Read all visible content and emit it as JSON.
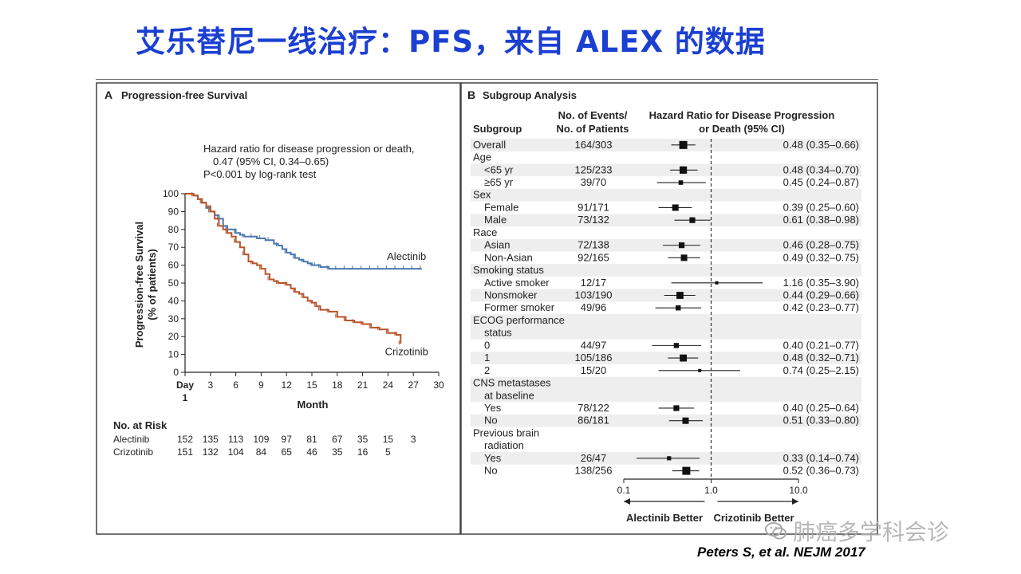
{
  "slide": {
    "title": "艾乐替尼一线治疗：PFS，来自 ALEX 的数据",
    "citation": "Peters S, et al. NEJM 2017",
    "watermark": "肺癌多学科会诊"
  },
  "chart_data": [
    {
      "type": "line",
      "panel_letter": "A",
      "title": "Progression-free Survival",
      "annotation": [
        "Hazard ratio for disease progression or death,",
        "0.47 (95% CI, 0.34–0.65)",
        "P<0.001 by log-rank test"
      ],
      "ylabel": [
        "Progression-free Survival",
        "(% of patients)"
      ],
      "xlabel": "Month",
      "xlim": [
        0,
        30
      ],
      "ylim": [
        0,
        100
      ],
      "xticks": [
        {
          "v": 0,
          "label": "Day"
        },
        {
          "v": 3,
          "label": "3"
        },
        {
          "v": 6,
          "label": "6"
        },
        {
          "v": 9,
          "label": "9"
        },
        {
          "v": 12,
          "label": "12"
        },
        {
          "v": 15,
          "label": "15"
        },
        {
          "v": 18,
          "label": "18"
        },
        {
          "v": 21,
          "label": "21"
        },
        {
          "v": 24,
          "label": "24"
        },
        {
          "v": 27,
          "label": "27"
        },
        {
          "v": 30,
          "label": "30"
        }
      ],
      "xtick_sub": "1",
      "yticks": [
        0,
        10,
        20,
        30,
        40,
        50,
        60,
        70,
        80,
        90,
        100
      ],
      "series": [
        {
          "name": "Alectinib",
          "color": "#4a78b0",
          "x": [
            0,
            0.5,
            1,
            1.5,
            2,
            2.5,
            3,
            3.5,
            4,
            4.5,
            5,
            5.5,
            6,
            6.5,
            7,
            7.5,
            8,
            8.5,
            9,
            9.5,
            10,
            10.5,
            11,
            11.5,
            12,
            12.5,
            13,
            13.5,
            14,
            14.5,
            15,
            15.5,
            16,
            17,
            18,
            19,
            20,
            21,
            22,
            23,
            24,
            25,
            26,
            27,
            28
          ],
          "y": [
            100,
            100,
            99,
            97,
            95,
            92,
            90,
            88,
            86,
            82,
            80,
            80,
            78,
            77,
            76,
            76,
            76,
            75,
            75,
            74,
            74,
            72,
            71,
            69,
            67,
            66,
            64,
            63,
            62,
            61,
            60,
            60,
            59,
            58,
            58,
            58,
            58,
            58,
            58,
            58,
            58,
            58,
            58,
            58,
            58
          ],
          "end_label_x": 26.2,
          "end_label_y": 63
        },
        {
          "name": "Crizotinib",
          "color": "#b8542a",
          "x": [
            0,
            0.5,
            1,
            1.5,
            2,
            2.5,
            3,
            3.5,
            4,
            4.5,
            5,
            5.5,
            6,
            6.5,
            7,
            7.5,
            8,
            8.5,
            9,
            9.5,
            10,
            10.5,
            11,
            11.5,
            12,
            12.5,
            13,
            13.5,
            14,
            14.5,
            15,
            15.5,
            16,
            17,
            18,
            19,
            20,
            21,
            22,
            23,
            24,
            25,
            25.5
          ],
          "y": [
            100,
            100,
            99,
            97,
            95,
            93,
            90,
            86,
            82,
            80,
            78,
            76,
            73,
            70,
            66,
            62,
            61,
            60,
            58,
            55,
            52,
            51,
            50,
            50,
            49,
            47,
            45,
            44,
            42,
            40,
            39,
            37,
            35,
            34,
            31,
            29,
            28,
            27,
            25,
            24,
            22,
            21,
            16
          ],
          "end_label_x": 26.2,
          "end_label_y": 9.5
        }
      ],
      "at_risk": {
        "header": "No. at Risk",
        "rows": [
          {
            "name": "Alectinib",
            "values": [
              "152",
              "135",
              "113",
              "109",
              "97",
              "81",
              "67",
              "35",
              "15",
              "3"
            ]
          },
          {
            "name": "Crizotinib",
            "values": [
              "151",
              "132",
              "104",
              "84",
              "65",
              "46",
              "35",
              "16",
              "5"
            ]
          }
        ]
      }
    },
    {
      "type": "forest",
      "panel_letter": "B",
      "title": "Subgroup Analysis",
      "col_headers": {
        "subgroup": "Subgroup",
        "events": [
          "No. of Events/",
          "No. of Patients"
        ],
        "hr": [
          "Hazard Ratio for Disease Progression",
          "or Death (95% CI)"
        ]
      },
      "x_scale": "log",
      "xlim": [
        0.1,
        10
      ],
      "xticks": [
        {
          "v": 0.1,
          "label": "0.1"
        },
        {
          "v": 1,
          "label": "1.0"
        },
        {
          "v": 10,
          "label": "10.0"
        }
      ],
      "left_favor": "Alectinib Better",
      "right_favor": "Crizotinib Better",
      "rows": [
        {
          "label": "Overall",
          "indent": 0,
          "events": "164/303",
          "hr": 0.48,
          "lo": 0.35,
          "hi": 0.66,
          "text": "0.48 (0.35–0.66)",
          "w": 1.0,
          "shade": true
        },
        {
          "label": "Age",
          "indent": 0,
          "header": true
        },
        {
          "label": "<65 yr",
          "indent": 1,
          "events": "125/233",
          "hr": 0.48,
          "lo": 0.34,
          "hi": 0.7,
          "text": "0.48 (0.34–0.70)",
          "w": 0.9,
          "shade": true
        },
        {
          "label": "≥65 yr",
          "indent": 1,
          "events": "39/70",
          "hr": 0.45,
          "lo": 0.24,
          "hi": 0.87,
          "text": "0.45 (0.24–0.87)",
          "w": 0.45
        },
        {
          "label": "Sex",
          "indent": 0,
          "header": true,
          "shade": true
        },
        {
          "label": "Female",
          "indent": 1,
          "events": "91/171",
          "hr": 0.39,
          "lo": 0.25,
          "hi": 0.6,
          "text": "0.39 (0.25–0.60)",
          "w": 0.75
        },
        {
          "label": "Male",
          "indent": 1,
          "events": "73/132",
          "hr": 0.61,
          "lo": 0.38,
          "hi": 0.98,
          "text": "0.61 (0.38–0.98)",
          "w": 0.65,
          "shade": true
        },
        {
          "label": "Race",
          "indent": 0,
          "header": true
        },
        {
          "label": "Asian",
          "indent": 1,
          "events": "72/138",
          "hr": 0.46,
          "lo": 0.28,
          "hi": 0.75,
          "text": "0.46 (0.28–0.75)",
          "w": 0.65,
          "shade": true
        },
        {
          "label": "Non-Asian",
          "indent": 1,
          "events": "92/165",
          "hr": 0.49,
          "lo": 0.32,
          "hi": 0.75,
          "text": "0.49 (0.32–0.75)",
          "w": 0.75
        },
        {
          "label": "Smoking status",
          "indent": 0,
          "header": true,
          "shade": true
        },
        {
          "label": "Active smoker",
          "indent": 1,
          "events": "12/17",
          "hr": 1.16,
          "lo": 0.35,
          "hi": 3.9,
          "text": "1.16 (0.35–3.90)",
          "w": 0.25
        },
        {
          "label": "Nonsmoker",
          "indent": 1,
          "events": "103/190",
          "hr": 0.44,
          "lo": 0.29,
          "hi": 0.66,
          "text": "0.44 (0.29–0.66)",
          "w": 0.85,
          "shade": true
        },
        {
          "label": "Former smoker",
          "indent": 1,
          "events": "49/96",
          "hr": 0.42,
          "lo": 0.23,
          "hi": 0.77,
          "text": "0.42 (0.23–0.77)",
          "w": 0.55
        },
        {
          "label": "ECOG performance",
          "label2": "status",
          "indent": 0,
          "header": true,
          "shade": true
        },
        {
          "label": "0",
          "indent": 1,
          "events": "44/97",
          "hr": 0.4,
          "lo": 0.21,
          "hi": 0.77,
          "text": "0.40 (0.21–0.77)",
          "w": 0.55
        },
        {
          "label": "1",
          "indent": 1,
          "events": "105/186",
          "hr": 0.48,
          "lo": 0.32,
          "hi": 0.71,
          "text": "0.48 (0.32–0.71)",
          "w": 0.85,
          "shade": true
        },
        {
          "label": "2",
          "indent": 1,
          "events": "15/20",
          "hr": 0.74,
          "lo": 0.25,
          "hi": 2.15,
          "text": "0.74 (0.25–2.15)",
          "w": 0.25
        },
        {
          "label": "CNS metastases",
          "label2": "at baseline",
          "indent": 0,
          "header": true,
          "shade": true
        },
        {
          "label": "Yes",
          "indent": 1,
          "events": "78/122",
          "hr": 0.4,
          "lo": 0.25,
          "hi": 0.64,
          "text": "0.40 (0.25–0.64)",
          "w": 0.65
        },
        {
          "label": "No",
          "indent": 1,
          "events": "86/181",
          "hr": 0.51,
          "lo": 0.33,
          "hi": 0.8,
          "text": "0.51 (0.33–0.80)",
          "w": 0.75,
          "shade": true
        },
        {
          "label": "Previous brain",
          "label2": "radiation",
          "indent": 0,
          "header": true
        },
        {
          "label": "Yes",
          "indent": 1,
          "events": "26/47",
          "hr": 0.33,
          "lo": 0.14,
          "hi": 0.74,
          "text": "0.33 (0.14–0.74)",
          "w": 0.4,
          "shade": true
        },
        {
          "label": "No",
          "indent": 1,
          "events": "138/256",
          "hr": 0.52,
          "lo": 0.36,
          "hi": 0.73,
          "text": "0.52 (0.36–0.73)",
          "w": 1.0
        }
      ]
    }
  ]
}
